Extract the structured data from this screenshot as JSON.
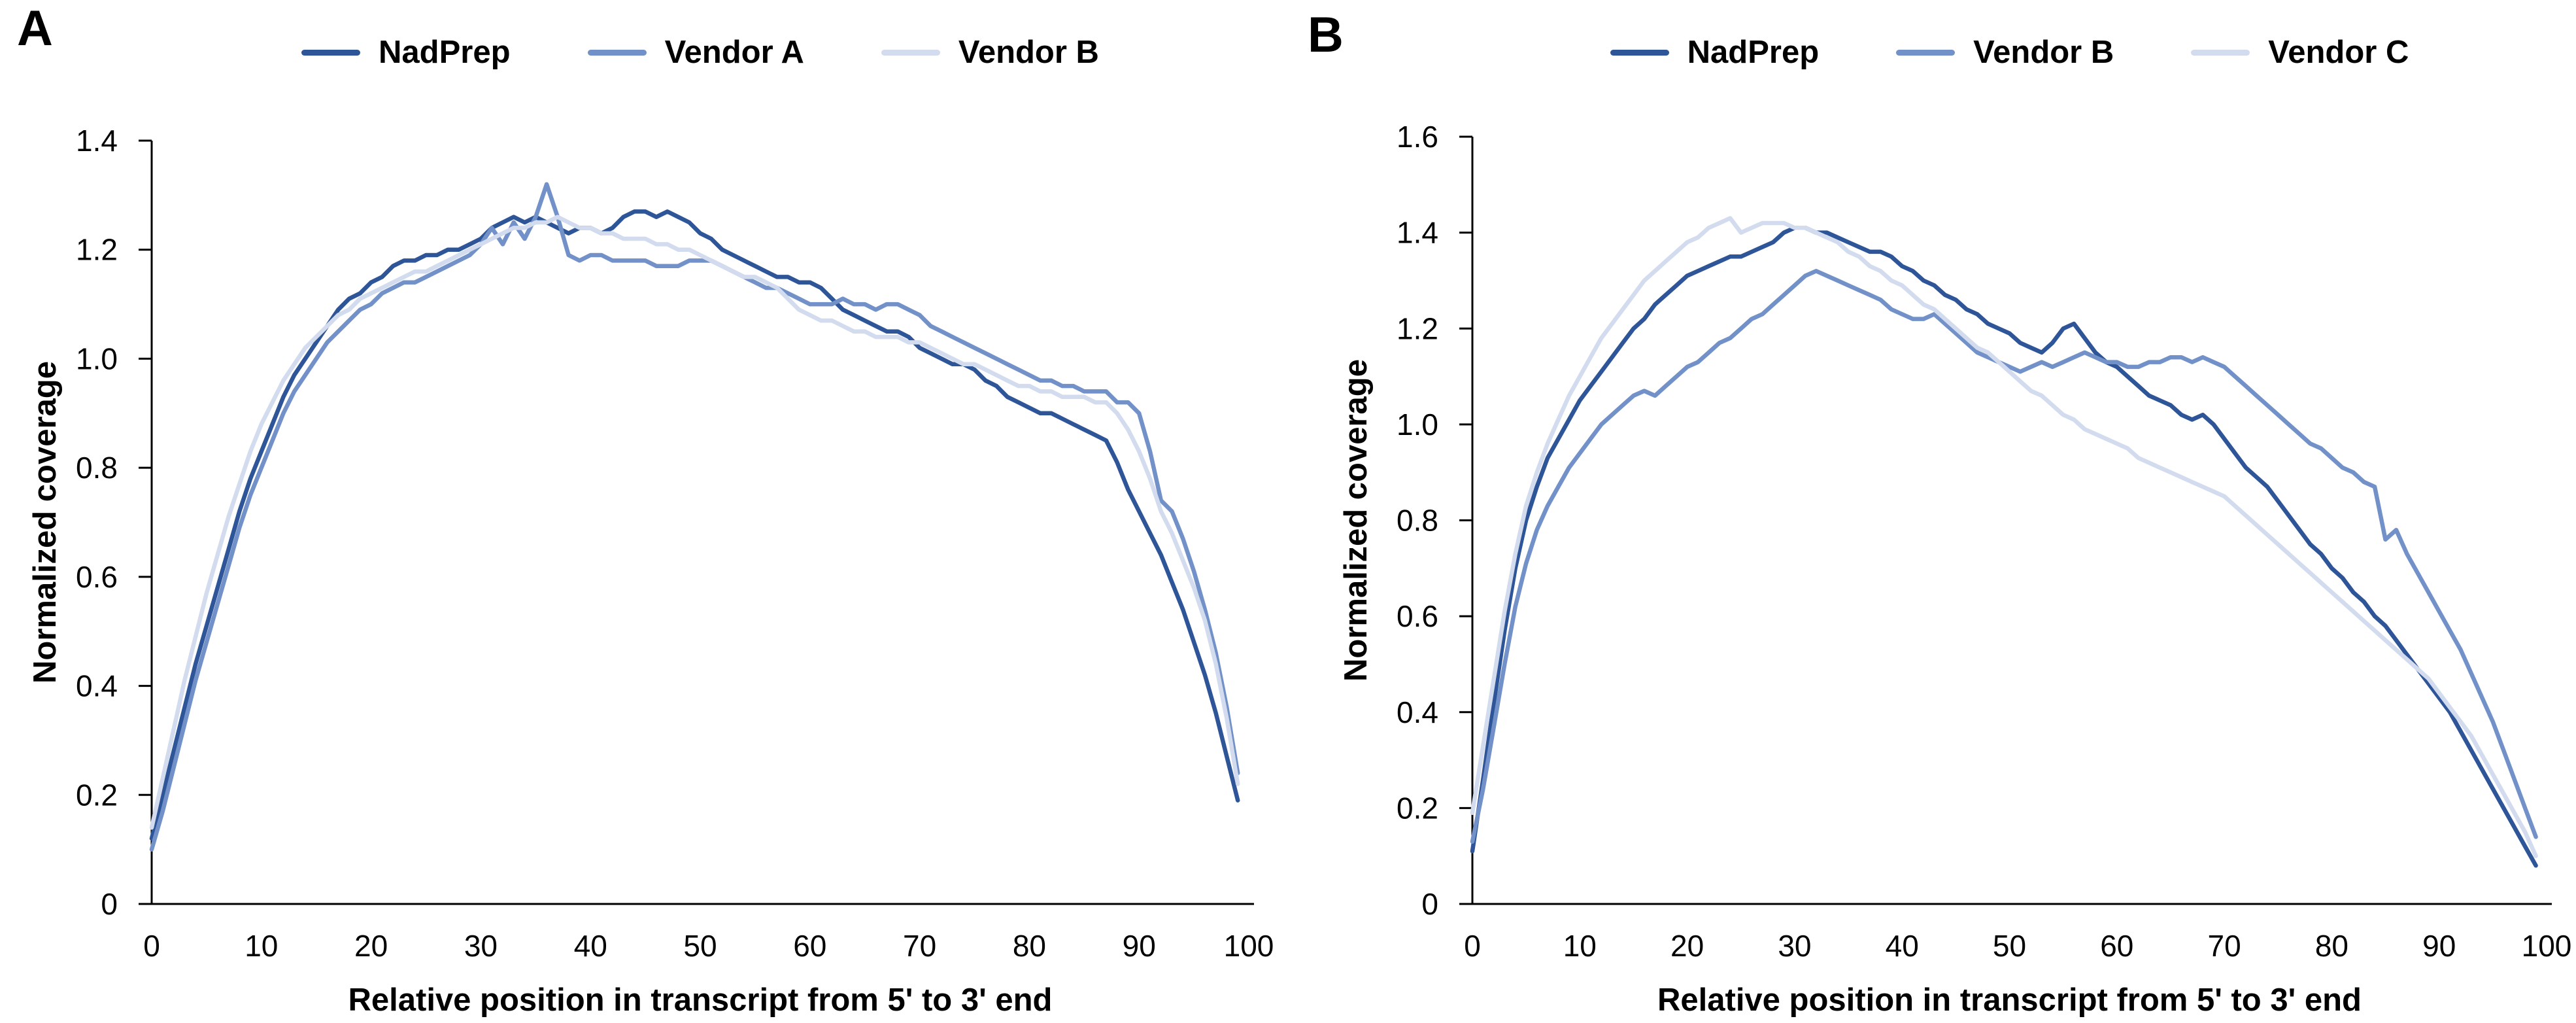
{
  "figure": {
    "background": "#FFFFFF",
    "panels": [
      {
        "letter": "A"
      },
      {
        "letter": "B"
      }
    ]
  },
  "chart_data": [
    {
      "type": "line",
      "panel": "A",
      "title": "",
      "xlabel": "Relative position in transcript from 5' to 3' end",
      "ylabel": "Normalized coverage",
      "xlim": [
        0,
        100
      ],
      "ylim": [
        0,
        1.4
      ],
      "grid": false,
      "legend_position": "top",
      "xticks": [
        0,
        10,
        20,
        30,
        40,
        50,
        60,
        70,
        80,
        90,
        100
      ],
      "yticks": [
        0,
        0.2,
        0.4,
        0.6,
        0.8,
        1.0,
        1.2,
        1.4
      ],
      "ytick_labels": [
        "0",
        "0.2",
        "0.4",
        "0.6",
        "0.8",
        "1.0",
        "1.2",
        "1.4"
      ],
      "x_description": "positions 0 to 99 along transcript",
      "series": [
        {
          "name": "NadPrep",
          "color": "#2E5597",
          "values": [
            0.12,
            0.2,
            0.28,
            0.36,
            0.44,
            0.51,
            0.58,
            0.65,
            0.72,
            0.78,
            0.83,
            0.88,
            0.93,
            0.97,
            1.0,
            1.03,
            1.06,
            1.09,
            1.11,
            1.12,
            1.14,
            1.15,
            1.17,
            1.18,
            1.18,
            1.19,
            1.19,
            1.2,
            1.2,
            1.21,
            1.22,
            1.24,
            1.25,
            1.26,
            1.25,
            1.26,
            1.25,
            1.24,
            1.23,
            1.24,
            1.24,
            1.23,
            1.24,
            1.26,
            1.27,
            1.27,
            1.26,
            1.27,
            1.26,
            1.25,
            1.23,
            1.22,
            1.2,
            1.19,
            1.18,
            1.17,
            1.16,
            1.15,
            1.15,
            1.14,
            1.14,
            1.13,
            1.11,
            1.09,
            1.08,
            1.07,
            1.06,
            1.05,
            1.05,
            1.04,
            1.02,
            1.01,
            1.0,
            0.99,
            0.99,
            0.98,
            0.96,
            0.95,
            0.93,
            0.92,
            0.91,
            0.9,
            0.9,
            0.89,
            0.88,
            0.87,
            0.86,
            0.85,
            0.81,
            0.76,
            0.72,
            0.68,
            0.64,
            0.59,
            0.54,
            0.48,
            0.42,
            0.35,
            0.27,
            0.19
          ]
        },
        {
          "name": "Vendor A",
          "color": "#7191C8",
          "values": [
            0.1,
            0.17,
            0.25,
            0.33,
            0.41,
            0.48,
            0.55,
            0.62,
            0.69,
            0.75,
            0.8,
            0.85,
            0.9,
            0.94,
            0.97,
            1.0,
            1.03,
            1.05,
            1.07,
            1.09,
            1.1,
            1.12,
            1.13,
            1.14,
            1.14,
            1.15,
            1.16,
            1.17,
            1.18,
            1.19,
            1.21,
            1.24,
            1.21,
            1.25,
            1.22,
            1.26,
            1.32,
            1.26,
            1.19,
            1.18,
            1.19,
            1.19,
            1.18,
            1.18,
            1.18,
            1.18,
            1.17,
            1.17,
            1.17,
            1.18,
            1.18,
            1.18,
            1.17,
            1.16,
            1.15,
            1.14,
            1.13,
            1.13,
            1.12,
            1.11,
            1.1,
            1.1,
            1.1,
            1.11,
            1.1,
            1.1,
            1.09,
            1.1,
            1.1,
            1.09,
            1.08,
            1.06,
            1.05,
            1.04,
            1.03,
            1.02,
            1.01,
            1.0,
            0.99,
            0.98,
            0.97,
            0.96,
            0.96,
            0.95,
            0.95,
            0.94,
            0.94,
            0.94,
            0.92,
            0.92,
            0.9,
            0.83,
            0.74,
            0.72,
            0.67,
            0.61,
            0.54,
            0.46,
            0.36,
            0.24
          ]
        },
        {
          "name": "Vendor B",
          "color": "#D2DCEE",
          "values": [
            0.14,
            0.23,
            0.32,
            0.41,
            0.49,
            0.57,
            0.64,
            0.71,
            0.77,
            0.83,
            0.88,
            0.92,
            0.96,
            0.99,
            1.02,
            1.04,
            1.06,
            1.08,
            1.09,
            1.11,
            1.12,
            1.13,
            1.14,
            1.15,
            1.16,
            1.16,
            1.17,
            1.18,
            1.19,
            1.2,
            1.21,
            1.22,
            1.23,
            1.24,
            1.24,
            1.25,
            1.25,
            1.26,
            1.25,
            1.24,
            1.24,
            1.23,
            1.23,
            1.22,
            1.22,
            1.22,
            1.21,
            1.21,
            1.2,
            1.2,
            1.19,
            1.18,
            1.17,
            1.16,
            1.15,
            1.15,
            1.14,
            1.13,
            1.11,
            1.09,
            1.08,
            1.07,
            1.07,
            1.06,
            1.05,
            1.05,
            1.04,
            1.04,
            1.04,
            1.03,
            1.03,
            1.02,
            1.01,
            1.0,
            0.99,
            0.99,
            0.98,
            0.97,
            0.96,
            0.95,
            0.95,
            0.94,
            0.94,
            0.93,
            0.93,
            0.93,
            0.92,
            0.92,
            0.9,
            0.87,
            0.83,
            0.78,
            0.72,
            0.68,
            0.63,
            0.58,
            0.52,
            0.44,
            0.34,
            0.22
          ]
        }
      ]
    },
    {
      "type": "line",
      "panel": "B",
      "title": "",
      "xlabel": "Relative position in transcript from 5' to 3' end",
      "ylabel": "Normalized coverage",
      "xlim": [
        0,
        100
      ],
      "ylim": [
        0,
        1.6
      ],
      "grid": false,
      "legend_position": "top",
      "xticks": [
        0,
        10,
        20,
        30,
        40,
        50,
        60,
        70,
        80,
        90,
        100
      ],
      "yticks": [
        0,
        0.2,
        0.4,
        0.6,
        0.8,
        1.0,
        1.2,
        1.4,
        1.6
      ],
      "ytick_labels": [
        "0",
        "0.2",
        "0.4",
        "0.6",
        "0.8",
        "1.0",
        "1.2",
        "1.4",
        "1.6"
      ],
      "x_description": "positions 0 to 99 along transcript",
      "series": [
        {
          "name": "NadPrep",
          "color": "#2E5597",
          "values": [
            0.11,
            0.26,
            0.42,
            0.57,
            0.7,
            0.8,
            0.87,
            0.93,
            0.97,
            1.01,
            1.05,
            1.08,
            1.11,
            1.14,
            1.17,
            1.2,
            1.22,
            1.25,
            1.27,
            1.29,
            1.31,
            1.32,
            1.33,
            1.34,
            1.35,
            1.35,
            1.36,
            1.37,
            1.38,
            1.4,
            1.41,
            1.41,
            1.4,
            1.4,
            1.39,
            1.38,
            1.37,
            1.36,
            1.36,
            1.35,
            1.33,
            1.32,
            1.3,
            1.29,
            1.27,
            1.26,
            1.24,
            1.23,
            1.21,
            1.2,
            1.19,
            1.17,
            1.16,
            1.15,
            1.17,
            1.2,
            1.21,
            1.18,
            1.15,
            1.13,
            1.12,
            1.1,
            1.08,
            1.06,
            1.05,
            1.04,
            1.02,
            1.01,
            1.02,
            1.0,
            0.97,
            0.94,
            0.91,
            0.89,
            0.87,
            0.84,
            0.81,
            0.78,
            0.75,
            0.73,
            0.7,
            0.68,
            0.65,
            0.63,
            0.6,
            0.58,
            0.55,
            0.52,
            0.49,
            0.46,
            0.43,
            0.4,
            0.36,
            0.32,
            0.28,
            0.24,
            0.2,
            0.16,
            0.12,
            0.08
          ]
        },
        {
          "name": "Vendor B",
          "color": "#7191C8",
          "values": [
            0.13,
            0.24,
            0.37,
            0.5,
            0.62,
            0.71,
            0.78,
            0.83,
            0.87,
            0.91,
            0.94,
            0.97,
            1.0,
            1.02,
            1.04,
            1.06,
            1.07,
            1.06,
            1.08,
            1.1,
            1.12,
            1.13,
            1.15,
            1.17,
            1.18,
            1.2,
            1.22,
            1.23,
            1.25,
            1.27,
            1.29,
            1.31,
            1.32,
            1.31,
            1.3,
            1.29,
            1.28,
            1.27,
            1.26,
            1.24,
            1.23,
            1.22,
            1.22,
            1.23,
            1.21,
            1.19,
            1.17,
            1.15,
            1.14,
            1.13,
            1.12,
            1.11,
            1.12,
            1.13,
            1.12,
            1.13,
            1.14,
            1.15,
            1.14,
            1.13,
            1.13,
            1.12,
            1.12,
            1.13,
            1.13,
            1.14,
            1.14,
            1.13,
            1.14,
            1.13,
            1.12,
            1.1,
            1.08,
            1.06,
            1.04,
            1.02,
            1.0,
            0.98,
            0.96,
            0.95,
            0.93,
            0.91,
            0.9,
            0.88,
            0.87,
            0.76,
            0.78,
            0.73,
            0.69,
            0.65,
            0.61,
            0.57,
            0.53,
            0.48,
            0.43,
            0.38,
            0.32,
            0.26,
            0.2,
            0.14
          ]
        },
        {
          "name": "Vendor C",
          "color": "#D2DCEE",
          "values": [
            0.19,
            0.33,
            0.47,
            0.61,
            0.73,
            0.83,
            0.9,
            0.96,
            1.01,
            1.06,
            1.1,
            1.14,
            1.18,
            1.21,
            1.24,
            1.27,
            1.3,
            1.32,
            1.34,
            1.36,
            1.38,
            1.39,
            1.41,
            1.42,
            1.43,
            1.4,
            1.41,
            1.42,
            1.42,
            1.42,
            1.41,
            1.41,
            1.4,
            1.39,
            1.38,
            1.36,
            1.35,
            1.33,
            1.32,
            1.3,
            1.29,
            1.27,
            1.25,
            1.24,
            1.22,
            1.2,
            1.18,
            1.16,
            1.15,
            1.13,
            1.11,
            1.09,
            1.07,
            1.06,
            1.04,
            1.02,
            1.01,
            0.99,
            0.98,
            0.97,
            0.96,
            0.95,
            0.93,
            0.92,
            0.91,
            0.9,
            0.89,
            0.88,
            0.87,
            0.86,
            0.85,
            0.83,
            0.81,
            0.79,
            0.77,
            0.75,
            0.73,
            0.71,
            0.69,
            0.67,
            0.65,
            0.63,
            0.61,
            0.59,
            0.57,
            0.55,
            0.53,
            0.51,
            0.49,
            0.47,
            0.44,
            0.41,
            0.38,
            0.35,
            0.31,
            0.27,
            0.23,
            0.19,
            0.15,
            0.1
          ]
        }
      ]
    }
  ]
}
